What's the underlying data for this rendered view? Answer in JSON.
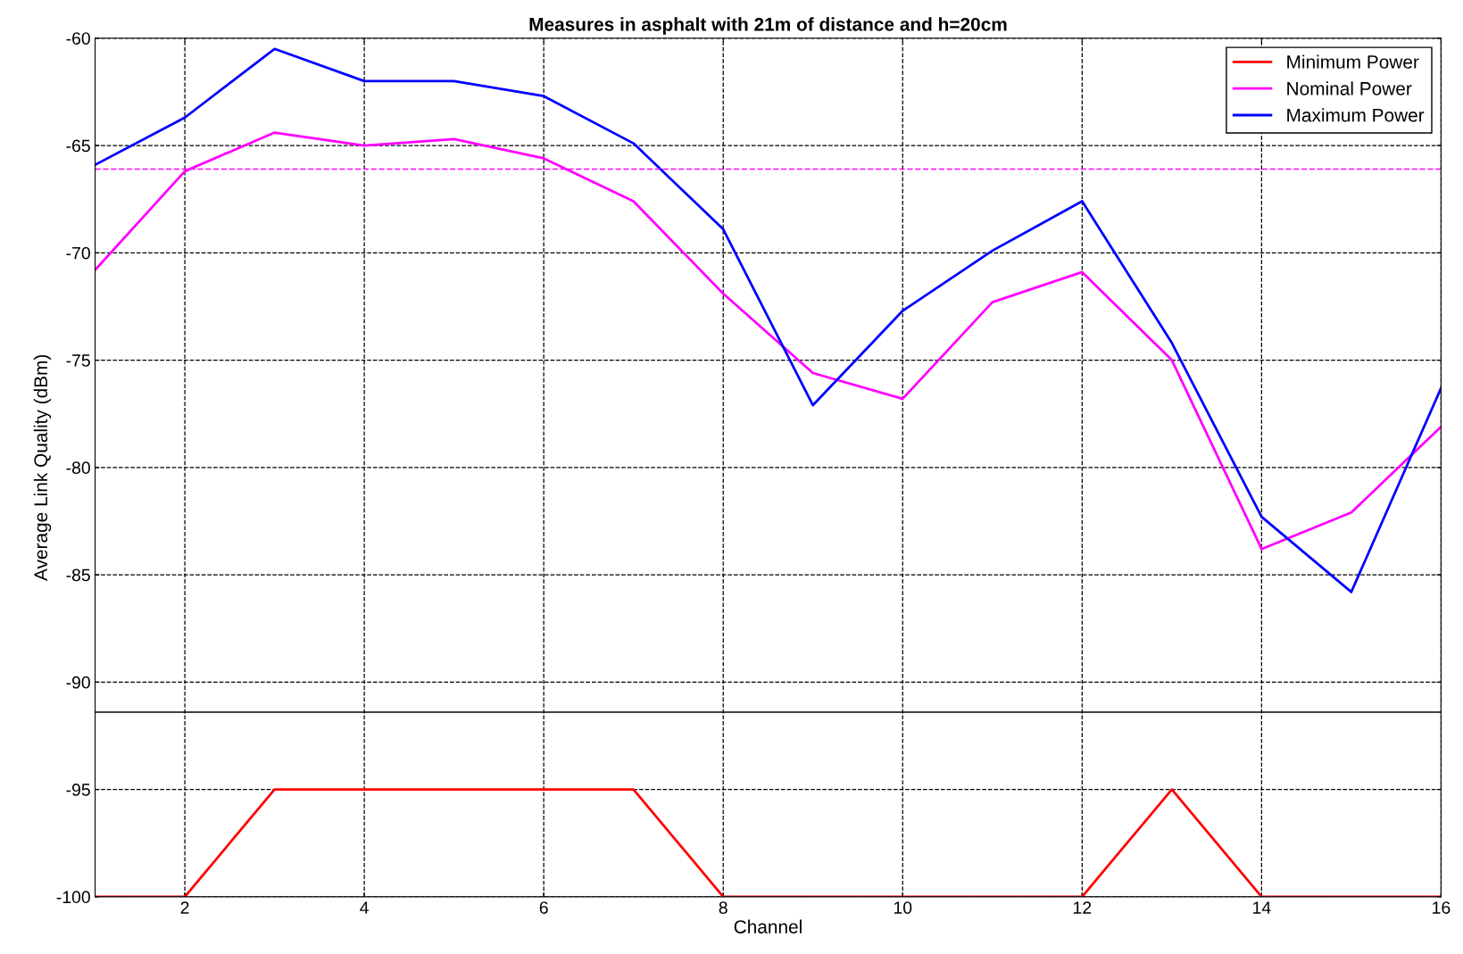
{
  "chart_data": {
    "type": "line",
    "title": "Measures in asphalt with 21m of distance and h=20cm",
    "xlabel": "Channel",
    "ylabel": "Average Link Quality (dBm)",
    "x": [
      1,
      2,
      3,
      4,
      5,
      6,
      7,
      8,
      9,
      10,
      11,
      12,
      13,
      14,
      15,
      16
    ],
    "series": [
      {
        "name": "Minimum Power",
        "color": "#ff0000",
        "values": [
          -100,
          -100,
          -95,
          -95,
          -95,
          -95,
          -95,
          -100,
          -100,
          -100,
          -100,
          -100,
          -95,
          -100,
          -100,
          -100
        ]
      },
      {
        "name": "Nominal Power",
        "color": "#ff00ff",
        "values": [
          -70.8,
          -66.2,
          -64.4,
          -65.0,
          -64.7,
          -65.6,
          -67.6,
          -71.9,
          -75.6,
          -76.8,
          -72.3,
          -70.9,
          -75.0,
          -83.8,
          -82.1,
          -78.1
        ]
      },
      {
        "name": "Maximum Power",
        "color": "#0000ff",
        "values": [
          -65.9,
          -63.7,
          -60.5,
          -62.0,
          -62.0,
          -62.7,
          -64.9,
          -68.9,
          -77.1,
          -72.7,
          -69.9,
          -67.6,
          -74.2,
          -82.3,
          -85.8,
          -76.3
        ]
      }
    ],
    "ref_lines": [
      {
        "axis": "y",
        "value": -66.1,
        "color": "#ff00ff",
        "line_style": "dashed"
      },
      {
        "axis": "y",
        "value": -91.4,
        "color": "#000000",
        "line_style": "solid"
      }
    ],
    "xlim": [
      1,
      16
    ],
    "xticks": [
      2,
      4,
      6,
      8,
      10,
      12,
      14,
      16
    ],
    "ylim": [
      -100,
      -60
    ],
    "yticks": [
      -100,
      -95,
      -90,
      -85,
      -80,
      -75,
      -70,
      -65,
      -60
    ],
    "grid": true,
    "legend": "top right",
    "marker": "none",
    "line_style": "solid"
  }
}
